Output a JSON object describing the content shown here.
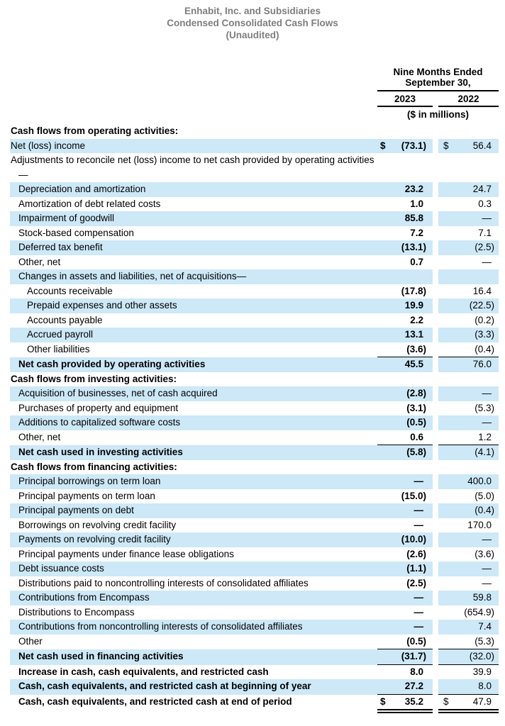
{
  "title": {
    "company": "Enhabit, Inc. and Subsidiaries",
    "statement": "Condensed Consolidated Cash Flows",
    "audit_status": "(Unaudited)"
  },
  "colors": {
    "row_highlight": "#cde8f7",
    "title_gray": "#7e7e7e",
    "rule_line": "#000000"
  },
  "table": {
    "period_line1": "Nine Months Ended",
    "period_line2": "September 30,",
    "col_2023": "2023",
    "col_2022": "2022",
    "units_note": "($ in millions)",
    "rows": [
      {
        "label": "Cash flows from operating activities:",
        "indent": 0,
        "bold": true,
        "section_header": true,
        "highlight": false
      },
      {
        "label": "Net (loss) income",
        "indent": 0,
        "v2023": "(73.1)",
        "v2022": "56.4",
        "dollar": true,
        "highlight": true
      },
      {
        "label": "Adjustments to reconcile net (loss) income to net cash provided by operating activities—",
        "indent": 0,
        "hanging": true,
        "highlight": false
      },
      {
        "label": "Depreciation and amortization",
        "indent": 1,
        "v2023": "23.2",
        "v2022": "24.7",
        "highlight": true
      },
      {
        "label": "Amortization of debt related costs",
        "indent": 1,
        "v2023": "1.0",
        "v2022": "0.3",
        "highlight": false
      },
      {
        "label": "Impairment of goodwill",
        "indent": 1,
        "v2023": "85.8",
        "v2022": "—",
        "highlight": true
      },
      {
        "label": "Stock-based compensation",
        "indent": 1,
        "v2023": "7.2",
        "v2022": "7.1",
        "highlight": false
      },
      {
        "label": "Deferred tax benefit",
        "indent": 1,
        "v2023": "(13.1)",
        "v2022": "(2.5)",
        "highlight": true
      },
      {
        "label": "Other, net",
        "indent": 1,
        "v2023": "0.7",
        "v2022": "—",
        "highlight": false
      },
      {
        "label": "Changes in assets and liabilities, net of acquisitions—",
        "indent": 1,
        "highlight": true
      },
      {
        "label": "Accounts receivable",
        "indent": 2,
        "v2023": "(17.8)",
        "v2022": "16.4",
        "highlight": false
      },
      {
        "label": "Prepaid expenses and other assets",
        "indent": 2,
        "v2023": "19.9",
        "v2022": "(22.5)",
        "highlight": true
      },
      {
        "label": "Accounts payable",
        "indent": 2,
        "v2023": "2.2",
        "v2022": "(0.2)",
        "highlight": false
      },
      {
        "label": "Accrued payroll",
        "indent": 2,
        "v2023": "13.1",
        "v2022": "(3.3)",
        "highlight": true
      },
      {
        "label": "Other liabilities",
        "indent": 2,
        "v2023": "(3.6)",
        "v2022": "(0.4)",
        "highlight": false,
        "underline": "single"
      },
      {
        "label": "Net cash provided by operating activities",
        "indent": 1,
        "bold": true,
        "v2023": "45.5",
        "v2022": "76.0",
        "highlight": true
      },
      {
        "label": "Cash flows from investing activities:",
        "indent": 0,
        "bold": true,
        "section_header": true,
        "highlight": false
      },
      {
        "label": "Acquisition of businesses, net of cash acquired",
        "indent": 1,
        "v2023": "(2.8)",
        "v2022": "—",
        "highlight": true
      },
      {
        "label": "Purchases of property and equipment",
        "indent": 1,
        "v2023": "(3.1)",
        "v2022": "(5.3)",
        "highlight": false
      },
      {
        "label": "Additions to capitalized software costs",
        "indent": 1,
        "v2023": "(0.5)",
        "v2022": "—",
        "highlight": true
      },
      {
        "label": "Other, net",
        "indent": 1,
        "v2023": "0.6",
        "v2022": "1.2",
        "highlight": false,
        "underline": "single"
      },
      {
        "label": "Net cash used in investing activities",
        "indent": 1,
        "bold": true,
        "v2023": "(5.8)",
        "v2022": "(4.1)",
        "highlight": true
      },
      {
        "label": "Cash flows from financing activities:",
        "indent": 0,
        "bold": true,
        "section_header": true,
        "highlight": false
      },
      {
        "label": "Principal borrowings on term loan",
        "indent": 1,
        "v2023": "—",
        "v2022": "400.0",
        "highlight": true
      },
      {
        "label": "Principal payments on term loan",
        "indent": 1,
        "v2023": "(15.0)",
        "v2022": "(5.0)",
        "highlight": false
      },
      {
        "label": "Principal payments on debt",
        "indent": 1,
        "v2023": "—",
        "v2022": "(0.4)",
        "highlight": true
      },
      {
        "label": "Borrowings on revolving credit facility",
        "indent": 1,
        "v2023": "—",
        "v2022": "170.0",
        "highlight": false
      },
      {
        "label": "Payments on revolving credit facility",
        "indent": 1,
        "v2023": "(10.0)",
        "v2022": "—",
        "highlight": true
      },
      {
        "label": "Principal payments under finance lease obligations",
        "indent": 1,
        "v2023": "(2.6)",
        "v2022": "(3.6)",
        "highlight": false
      },
      {
        "label": "Debt issuance costs",
        "indent": 1,
        "v2023": "(1.1)",
        "v2022": "—",
        "highlight": true
      },
      {
        "label": "Distributions paid to noncontrolling interests of consolidated affiliates",
        "indent": 1,
        "v2023": "(2.5)",
        "v2022": "—",
        "highlight": false
      },
      {
        "label": "Contributions from Encompass",
        "indent": 1,
        "v2023": "—",
        "v2022": "59.8",
        "highlight": true
      },
      {
        "label": "Distributions to Encompass",
        "indent": 1,
        "v2023": "—",
        "v2022": "(654.9)",
        "highlight": false
      },
      {
        "label": "Contributions from noncontrolling interests of consolidated affiliates",
        "indent": 1,
        "v2023": "—",
        "v2022": "7.4",
        "highlight": true
      },
      {
        "label": "Other",
        "indent": 1,
        "v2023": "(0.5)",
        "v2022": "(5.3)",
        "highlight": false,
        "underline": "single"
      },
      {
        "label": "Net cash used in financing activities",
        "indent": 1,
        "bold": true,
        "v2023": "(31.7)",
        "v2022": "(32.0)",
        "highlight": true,
        "underline": "single"
      },
      {
        "label": "Increase in cash, cash equivalents, and restricted cash",
        "indent": 1,
        "bold": true,
        "v2023": "8.0",
        "v2022": "39.9",
        "highlight": false
      },
      {
        "label": "Cash, cash equivalents, and restricted cash at beginning of year",
        "indent": 1,
        "bold": true,
        "v2023": "27.2",
        "v2022": "8.0",
        "highlight": true,
        "underline": "single"
      },
      {
        "label": "Cash, cash equivalents, and restricted cash at end of period",
        "indent": 1,
        "bold": true,
        "v2023": "35.2",
        "v2022": "47.9",
        "dollar": true,
        "highlight": false,
        "underline": "double"
      }
    ]
  }
}
